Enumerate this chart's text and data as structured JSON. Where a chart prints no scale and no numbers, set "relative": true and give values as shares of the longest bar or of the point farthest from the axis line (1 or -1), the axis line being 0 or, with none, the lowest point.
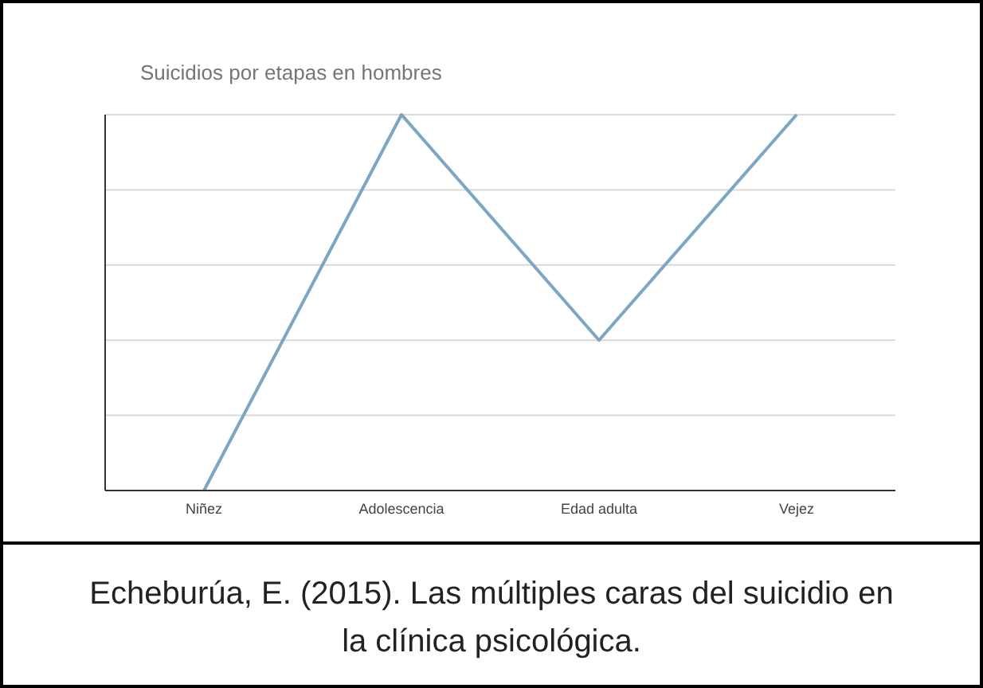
{
  "chart_data": {
    "type": "line",
    "title": "Suicidios por etapas en hombres",
    "categories": [
      "Niñez",
      "Adolescencia",
      "Edad adulta",
      "Vejez"
    ],
    "series": [
      {
        "color": "#7ba7c4",
        "values": [
          0,
          1,
          0.4,
          1
        ]
      }
    ],
    "relative": true,
    "grid": "y",
    "marker": "none",
    "line_style": "solid",
    "annotations": [
      "Echeburúa, E. (2015). Las múltiples caras del suicidio en la clínica psicológica."
    ]
  }
}
